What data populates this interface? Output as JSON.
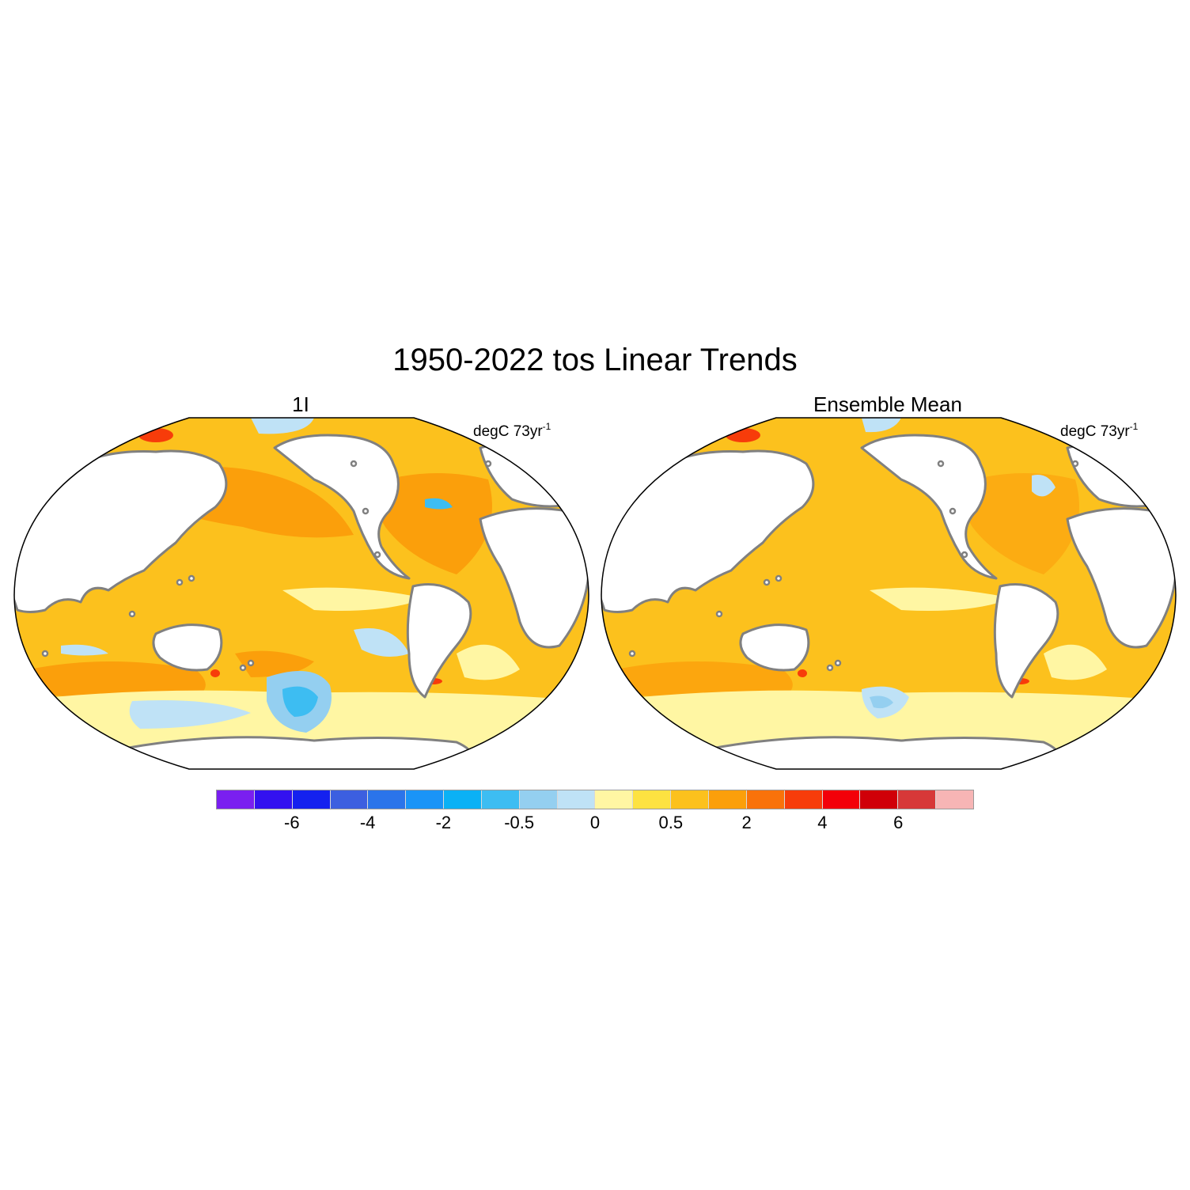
{
  "title": "1950-2022 tos Linear Trends",
  "panels": [
    {
      "title": "1I",
      "units": "degC 73yr",
      "units_exp": "-1"
    },
    {
      "title": "Ensemble Mean",
      "units": "degC 73yr",
      "units_exp": "-1"
    }
  ],
  "colorbar": {
    "colors": [
      "#7a1ff0",
      "#3311f0",
      "#1421ef",
      "#3c5fe0",
      "#2b74ea",
      "#1a94f7",
      "#0bb1f5",
      "#3dbdf2",
      "#94cff0",
      "#bfe2f6",
      "#fff6a3",
      "#fde241",
      "#fcc11d",
      "#fb9f0b",
      "#f9720a",
      "#f73c0a",
      "#f30009",
      "#d00008",
      "#d73838",
      "#f7b5b5"
    ],
    "labels": [
      "-6",
      "-4",
      "-2",
      "-0.5",
      "0",
      "0.5",
      "2",
      "4",
      "6"
    ]
  },
  "legend": {
    "ocean_warm": "#fcc11d",
    "ocean_stronger_warm": "#fb9f0b",
    "ocean_weak_warm": "#fff6a3",
    "ocean_slight_cool": "#bfe2f6",
    "ocean_cool": "#94cff0",
    "ocean_cooler": "#3dbdf2",
    "hot_spot": "#f73c0a",
    "land": "#ffffff",
    "coast": "#808080"
  }
}
